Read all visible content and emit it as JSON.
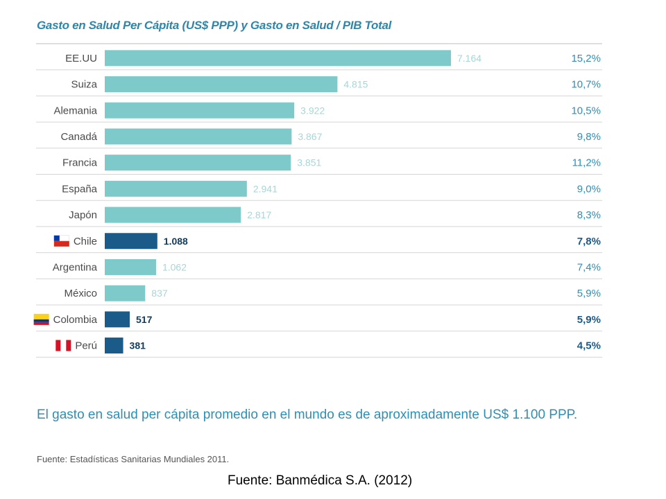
{
  "chart_data": {
    "type": "bar",
    "orientation": "horizontal",
    "title": "Gasto en Salud Per Cápita (US$ PPP) y Gasto en Salud / PIB Total",
    "categories": [
      "EE.UU",
      "Suiza",
      "Alemania",
      "Canadá",
      "Francia",
      "España",
      "Japón",
      "Chile",
      "Argentina",
      "México",
      "Colombia",
      "Perú"
    ],
    "values": [
      7164,
      4815,
      3922,
      3867,
      3851,
      2941,
      2817,
      1088,
      1062,
      837,
      517,
      381
    ],
    "value_labels": [
      "7.164",
      "4.815",
      "3.922",
      "3.867",
      "3.851",
      "2.941",
      "2.817",
      "1.088",
      "1.062",
      "837",
      "517",
      "381"
    ],
    "pct_gdp": [
      "15,2%",
      "10,7%",
      "10,5%",
      "9,8%",
      "11,2%",
      "9,0%",
      "8,3%",
      "7,8%",
      "7,4%",
      "5,9%",
      "5,9%",
      "4,5%"
    ],
    "highlighted": [
      "Chile",
      "Colombia",
      "Perú"
    ],
    "flags": {
      "Chile": "chile-flag-icon",
      "Colombia": "colombia-flag-icon",
      "Perú": "peru-flag-icon"
    },
    "colors": {
      "bar": "#7ecaca",
      "highlight": "#1b5b8a",
      "value_text": "#a8d6d6",
      "pct_text": "#2e8fb3",
      "pct_highlight": "#1b5b8a",
      "grid": "#d5d5d5"
    },
    "grid": true,
    "xlim": [
      0,
      7164
    ]
  },
  "note": "El gasto en salud per cápita promedio en el mundo es de aproximadamente US$ 1.100 PPP.",
  "source_1": "Fuente: Estadísticas Sanitarias Mundiales 2011.",
  "source_2": "Fuente: Banmédica S.A. (2012)"
}
